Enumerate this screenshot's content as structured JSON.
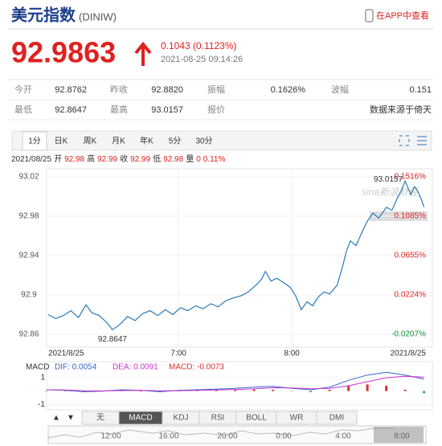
{
  "header": {
    "title": "美元指数",
    "code": "(DINIW)",
    "app": "在APP中查看"
  },
  "quote": {
    "price": "92.9863",
    "change": "0.1043 (0.1123%)",
    "time": "2021-08-25 09:14:26"
  },
  "stats": [
    [
      [
        "今开",
        "92.8762"
      ],
      [
        "昨收",
        "92.8820"
      ],
      [
        "振幅",
        "0.1626%"
      ],
      [
        "波幅",
        "0.151"
      ]
    ],
    [
      [
        "最低",
        "92.8647"
      ],
      [
        "最高",
        "93.0157"
      ],
      [
        "报价",
        ""
      ],
      [
        "",
        "数据来源于倚天"
      ]
    ]
  ],
  "tabs": [
    "1分",
    "日K",
    "周K",
    "月K",
    "年K",
    "5分",
    "30分"
  ],
  "info": {
    "date": "2021/08/25",
    "items": [
      [
        "开",
        "92.98"
      ],
      [
        "高",
        "92.99"
      ],
      [
        "收",
        "92.99"
      ],
      [
        "低",
        "92.98"
      ],
      [
        "量",
        "0"
      ]
    ],
    "pct": "0.11%"
  },
  "chart_data": [
    {
      "type": "line",
      "watermark": "sina新浪财经",
      "color": "#2a7ab8",
      "x": [
        351,
        355,
        359,
        363,
        367,
        371,
        374,
        378,
        382,
        385,
        389,
        393,
        397,
        401,
        405,
        409,
        413,
        417,
        421,
        425,
        429,
        433,
        437,
        441,
        445,
        449,
        453,
        457,
        461,
        464,
        466,
        469,
        472,
        476,
        479,
        482,
        485,
        488,
        491,
        494,
        497,
        500,
        504,
        507,
        509,
        511,
        514,
        517,
        520,
        523,
        526,
        530,
        533,
        536,
        538,
        540,
        543,
        545,
        547,
        549,
        550
      ],
      "series": [
        {
          "color": "#2a7ab8",
          "values": [
            92.88,
            92.876,
            92.879,
            92.884,
            92.877,
            92.89,
            92.882,
            92.879,
            92.872,
            92.8647,
            92.87,
            92.878,
            92.874,
            92.881,
            92.884,
            92.879,
            92.885,
            92.88,
            92.887,
            92.884,
            92.889,
            92.886,
            92.891,
            92.888,
            92.894,
            92.897,
            92.899,
            92.903,
            92.91,
            92.916,
            92.924,
            92.914,
            92.917,
            92.912,
            92.908,
            92.899,
            92.885,
            92.893,
            92.889,
            92.898,
            92.903,
            92.901,
            92.91,
            92.93,
            92.945,
            92.955,
            92.95,
            92.963,
            92.975,
            92.983,
            92.978,
            92.989,
            92.986,
            92.999,
            93.006,
            93.0157,
            93.002,
            93.01,
            93.004,
            92.995,
            92.989
          ]
        }
      ],
      "max_label": "93.0157",
      "min_label": "92.8647",
      "xlim": [
        351,
        551
      ],
      "xticks": [
        {
          "value": 420,
          "label": "7:00"
        },
        {
          "value": 480,
          "label": "8:00"
        }
      ],
      "date_start": "2021/8/25",
      "date_end": "2021/8/25",
      "ylim": [
        92.86,
        93.02
      ],
      "yticks": [
        93.02,
        92.98,
        92.94,
        92.9,
        92.86
      ],
      "y2lim": [
        -0.0207,
        0.1516
      ],
      "y2ticks": [
        {
          "value": 0.1516,
          "label": "0.1516%"
        },
        {
          "value": 0.1085,
          "label": "0.1085%"
        },
        {
          "value": 0.0655,
          "label": "0.0655%"
        },
        {
          "value": 0.0224,
          "label": "0.0224%"
        },
        {
          "value": -0.0207,
          "label": "-0.0207%"
        }
      ]
    },
    {
      "type": "macd",
      "title": "MACD",
      "x": [
        350,
        360,
        370,
        380,
        390,
        400,
        410,
        420,
        430,
        440,
        450,
        460,
        470,
        480,
        490,
        500,
        510,
        520,
        530,
        540,
        550
      ],
      "xlim": [
        351,
        551
      ],
      "ylim": [
        -1.4,
        1.9
      ],
      "yticks": [
        1,
        -1
      ],
      "series": [
        {
          "name": "DIF: 0.0054",
          "color": "#3366cc",
          "values": [
            0.1,
            0.05,
            -0.05,
            0,
            0.1,
            0.05,
            -0.05,
            0.05,
            0.1,
            0.15,
            0.2,
            0.3,
            0.35,
            0.2,
            0.1,
            0.3,
            0.8,
            1.2,
            1.4,
            1.2,
            0.9
          ]
        },
        {
          "name": "DEA: 0.0091",
          "color": "#cc33cc",
          "values": [
            0.1,
            0.08,
            0.03,
            0.01,
            0.04,
            0.05,
            0.02,
            0.03,
            0.05,
            0.08,
            0.12,
            0.18,
            0.25,
            0.23,
            0.18,
            0.2,
            0.4,
            0.7,
            1.0,
            1.1,
            1.05
          ]
        },
        {
          "name": "MACD: -0.0073",
          "color": "#e03030",
          "negative_color": "#20a070",
          "values": [
            0,
            -0.03,
            -0.08,
            -0.01,
            0.06,
            0,
            -0.07,
            0.02,
            0.05,
            0.07,
            0.08,
            0.12,
            0.1,
            -0.03,
            -0.08,
            0.1,
            0.4,
            0.5,
            0.4,
            0.1,
            -0.15
          ]
        }
      ]
    }
  ],
  "indicator_tabs": [
    "无",
    "MACD",
    "KDJ",
    "RSI",
    "BOLL",
    "WR",
    "DMI"
  ],
  "navigator_labels": [
    "12:00",
    "16:00",
    "20:00",
    "0:00",
    "4:00",
    "8:00"
  ]
}
